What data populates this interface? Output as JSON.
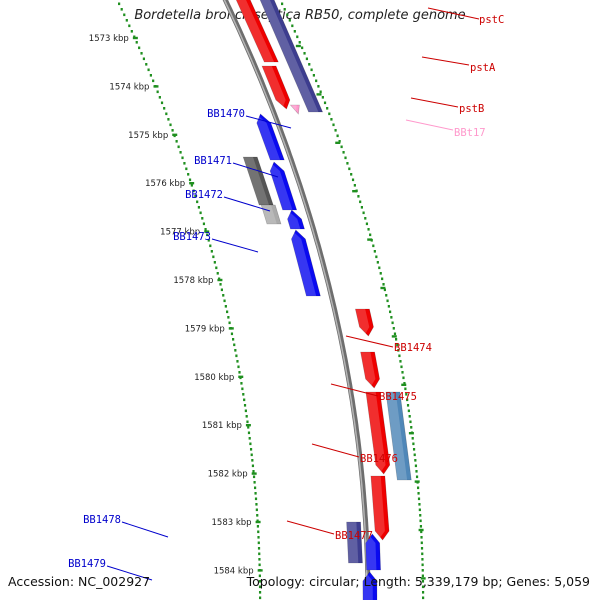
{
  "title": "Bordetella bronchiseptica RB50, complete genome",
  "footer": {
    "accession": "Accession: NC_002927",
    "topology": "Topology: circular; Length: 5,339,179 bp; Genes: 5,059"
  },
  "colors": {
    "forward_gene": "#0a0af0",
    "reverse_gene": "#ee0000",
    "forward_pseudo": "#555555",
    "forward_light": "#aaaaaa",
    "navy_gene": "#3d3d8f",
    "steel_gene": "#4f87b8",
    "rna_gene": "#ff99cc",
    "backbone": "#888888",
    "tick_dots": "#1f8f1f",
    "label_forward": "#0000cc",
    "label_reverse": "#cc0000",
    "label_rna": "#ff99cc"
  },
  "ticks": [
    {
      "label": "1573 kbp",
      "kbp": 1573
    },
    {
      "label": "1574 kbp",
      "kbp": 1574
    },
    {
      "label": "1575 kbp",
      "kbp": 1575
    },
    {
      "label": "1576 kbp",
      "kbp": 1576
    },
    {
      "label": "1577 kbp",
      "kbp": 1577
    },
    {
      "label": "1578 kbp",
      "kbp": 1578
    },
    {
      "label": "1579 kbp",
      "kbp": 1579
    },
    {
      "label": "1580 kbp",
      "kbp": 1580
    },
    {
      "label": "1581 kbp",
      "kbp": 1581
    },
    {
      "label": "1582 kbp",
      "kbp": 1582
    },
    {
      "label": "1583 kbp",
      "kbp": 1583
    },
    {
      "label": "1584 kbp",
      "kbp": 1584
    }
  ],
  "forward_labels": [
    "BB1470",
    "BB1471",
    "BB1472",
    "BB1473",
    "BB1478",
    "BB1479"
  ],
  "reverse_labels": [
    "pstC",
    "pstA",
    "pstB",
    "BB1474",
    "BB1475",
    "BB1476",
    "BB1477"
  ],
  "rna_labels": [
    "BBt17"
  ]
}
